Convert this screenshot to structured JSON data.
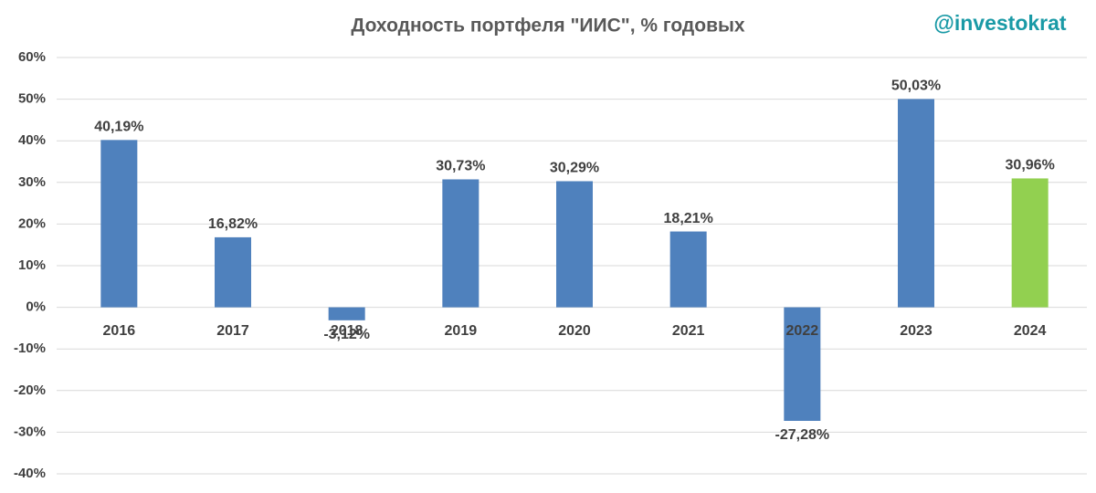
{
  "chart_data": {
    "type": "bar",
    "title": "Доходность портфеля \"ИИС\", % годовых",
    "watermark": "@investokrat",
    "categories": [
      "2016",
      "2017",
      "2018",
      "2019",
      "2020",
      "2021",
      "2022",
      "2023",
      "2024"
    ],
    "values": [
      40.19,
      16.82,
      -3.12,
      30.73,
      30.29,
      18.21,
      -27.28,
      50.03,
      30.96
    ],
    "value_labels": [
      "40,19%",
      "16,82%",
      "-3,12%",
      "30,73%",
      "30,29%",
      "18,21%",
      "-27,28%",
      "50,03%",
      "30,96%"
    ],
    "colors": [
      "#4f81bd",
      "#4f81bd",
      "#4f81bd",
      "#4f81bd",
      "#4f81bd",
      "#4f81bd",
      "#4f81bd",
      "#4f81bd",
      "#92d050"
    ],
    "ylim": [
      -40,
      60
    ],
    "yticks": [
      {
        "value": -40,
        "label": "-40%"
      },
      {
        "value": -30,
        "label": "-30%"
      },
      {
        "value": -20,
        "label": "-20%"
      },
      {
        "value": -10,
        "label": "-10%"
      },
      {
        "value": 0,
        "label": "0%"
      },
      {
        "value": 10,
        "label": "10%"
      },
      {
        "value": 20,
        "label": "20%"
      },
      {
        "value": 30,
        "label": "30%"
      },
      {
        "value": 40,
        "label": "40%"
      },
      {
        "value": 50,
        "label": "50%"
      },
      {
        "value": 60,
        "label": "60%"
      }
    ],
    "grid": true
  }
}
